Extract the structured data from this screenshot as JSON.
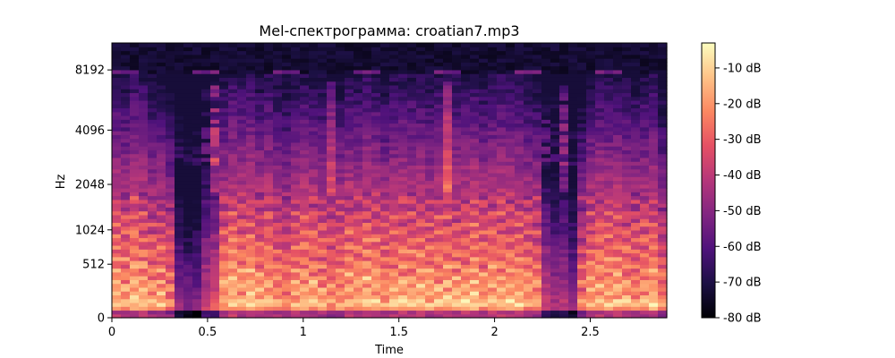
{
  "chart_data": {
    "type": "heatmap",
    "title": "Mel-спектрограмма: croatian7.mp3",
    "xlabel": "Time",
    "ylabel": "Hz",
    "x_ticks": [
      "0",
      "0.5",
      "1",
      "1.5",
      "2",
      "2.5"
    ],
    "x_tick_values": [
      0,
      0.5,
      1,
      1.5,
      2,
      2.5
    ],
    "xlim": [
      0,
      2.9
    ],
    "y_scale": "mel",
    "y_ticks": [
      "0",
      "512",
      "1024",
      "2048",
      "4096",
      "8192"
    ],
    "y_tick_values": [
      0,
      512,
      1024,
      2048,
      4096,
      8192
    ],
    "colormap": "magma",
    "colorbar": {
      "ticks": [
        "-10 dB",
        "-20 dB",
        "-30 dB",
        "-40 dB",
        "-50 dB",
        "-60 dB",
        "-70 dB",
        "-80 dB"
      ],
      "tick_values": [
        -10,
        -20,
        -30,
        -40,
        -50,
        -60,
        -70,
        -80
      ],
      "range": [
        -80,
        -3
      ]
    },
    "time_frames": 62,
    "mel_bands": 72,
    "low_band_energy_db": [
      -12,
      -14,
      -10,
      -12,
      -16,
      -15,
      -20,
      -45,
      -50,
      -48,
      -35,
      -30,
      -14,
      -10,
      -12,
      -10,
      -14,
      -12,
      -15,
      -18,
      -14,
      -12,
      -13,
      -15,
      -18,
      -16,
      -12,
      -14,
      -10,
      -12,
      -16,
      -13,
      -11,
      -12,
      -12,
      -14,
      -12,
      -11,
      -13,
      -12,
      -10,
      -14,
      -12,
      -11,
      -12,
      -13,
      -15,
      -16,
      -35,
      -40,
      -38,
      -45,
      -22,
      -14,
      -12,
      -13,
      -12,
      -14,
      -16,
      -14,
      -12,
      -20
    ],
    "note": ""
  }
}
